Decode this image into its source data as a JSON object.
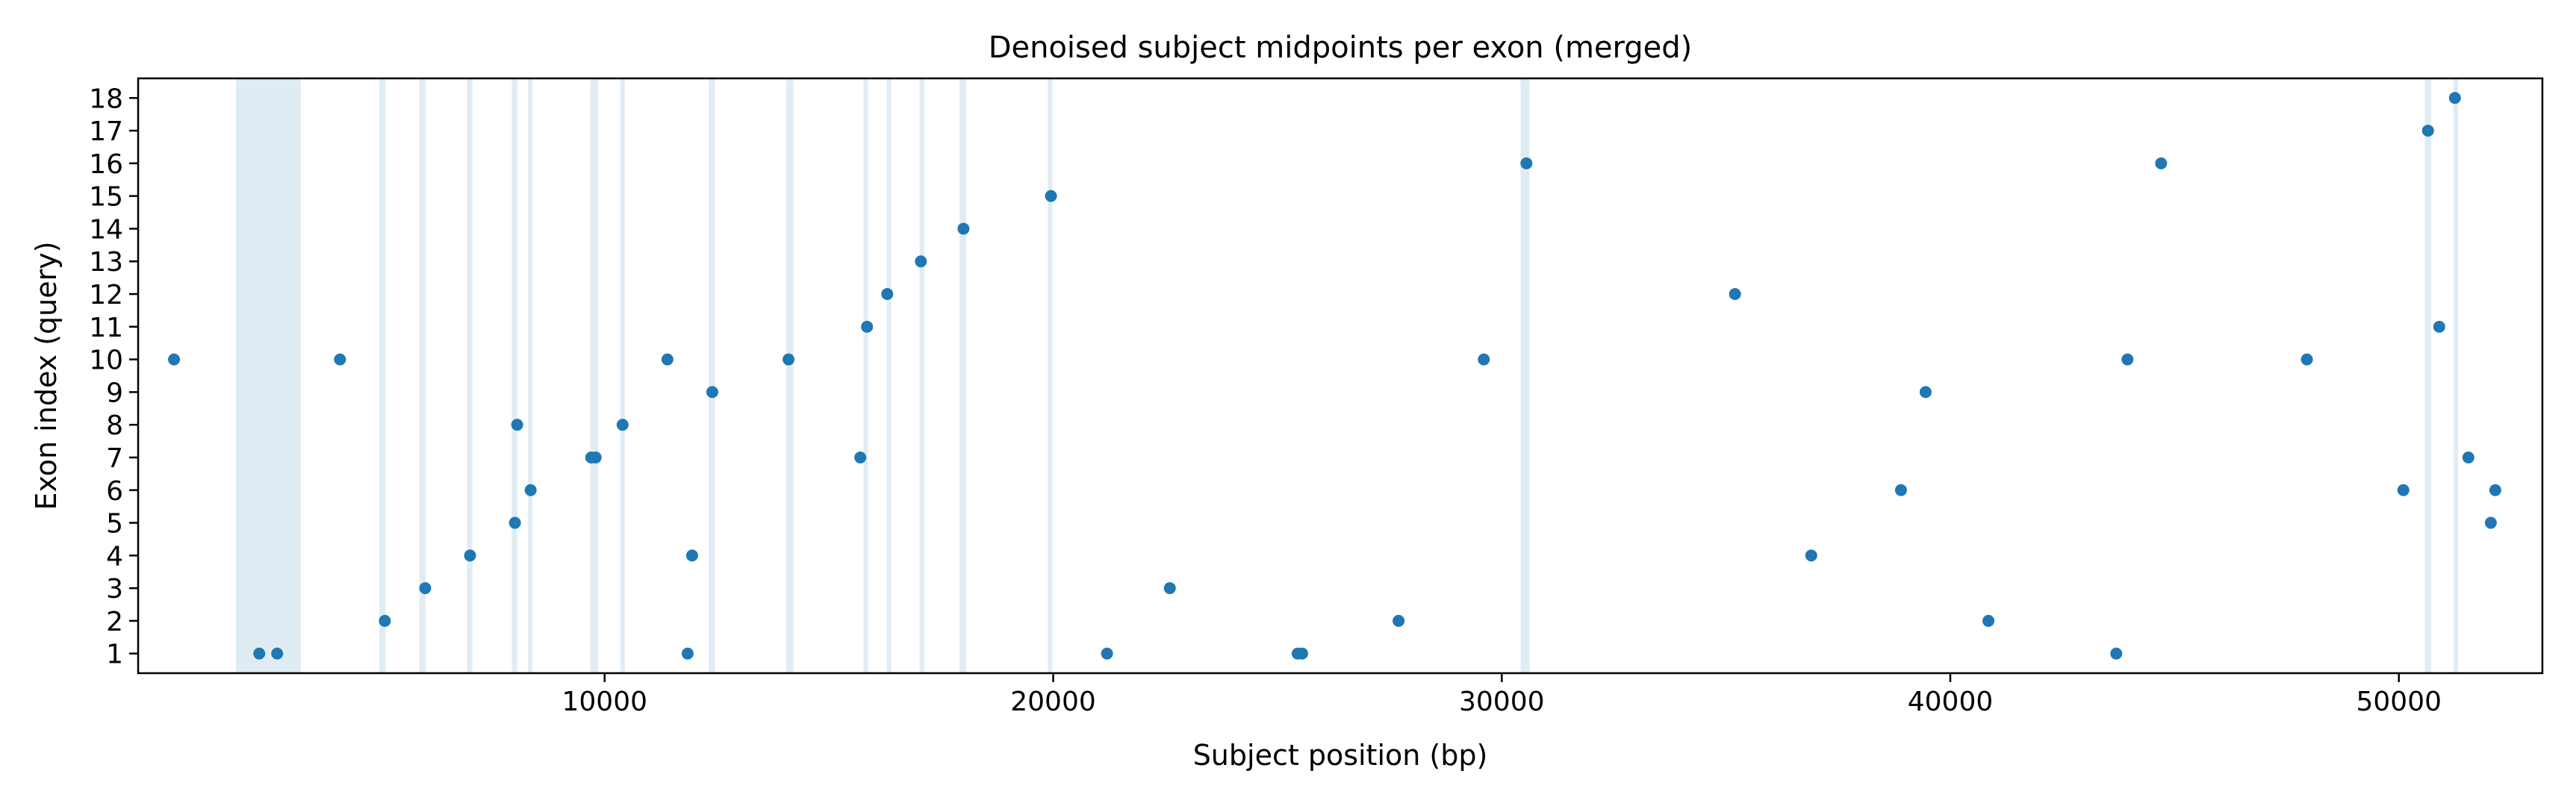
{
  "chart_data": {
    "type": "scatter",
    "title": "Denoised subject midpoints per exon (merged)",
    "xlabel": "Subject position (bp)",
    "ylabel": "Exon index (query)",
    "xlim": [
      -400,
      53200
    ],
    "ylim": [
      0.4,
      18.6
    ],
    "xticks": [
      10000,
      20000,
      30000,
      40000,
      50000
    ],
    "yticks": [
      1,
      2,
      3,
      4,
      5,
      6,
      7,
      8,
      9,
      10,
      11,
      12,
      13,
      14,
      15,
      16,
      17,
      18
    ],
    "grid": false,
    "legend": "none",
    "point_color": "#1f77b4",
    "band_color": "#d6e6f0",
    "shaded_bands": [
      [
        1780,
        3230
      ],
      [
        4980,
        5120
      ],
      [
        5870,
        6010
      ],
      [
        6930,
        7050
      ],
      [
        7930,
        8050
      ],
      [
        8290,
        8390
      ],
      [
        9680,
        9860
      ],
      [
        10350,
        10450
      ],
      [
        12320,
        12460
      ],
      [
        14050,
        14210
      ],
      [
        15770,
        15870
      ],
      [
        16290,
        16390
      ],
      [
        17020,
        17130
      ],
      [
        17910,
        18060
      ],
      [
        19880,
        19980
      ],
      [
        30420,
        30620
      ],
      [
        50580,
        50720
      ],
      [
        51220,
        51320
      ]
    ],
    "points": [
      {
        "x": 400,
        "y": 10
      },
      {
        "x": 2300,
        "y": 1
      },
      {
        "x": 2700,
        "y": 1
      },
      {
        "x": 4100,
        "y": 10
      },
      {
        "x": 5100,
        "y": 2
      },
      {
        "x": 6000,
        "y": 3
      },
      {
        "x": 7000,
        "y": 4
      },
      {
        "x": 8000,
        "y": 5
      },
      {
        "x": 8050,
        "y": 8
      },
      {
        "x": 8350,
        "y": 6
      },
      {
        "x": 9700,
        "y": 7
      },
      {
        "x": 9800,
        "y": 7
      },
      {
        "x": 10400,
        "y": 8
      },
      {
        "x": 11400,
        "y": 10
      },
      {
        "x": 11850,
        "y": 1
      },
      {
        "x": 11950,
        "y": 4
      },
      {
        "x": 12400,
        "y": 9
      },
      {
        "x": 14100,
        "y": 10
      },
      {
        "x": 15700,
        "y": 7
      },
      {
        "x": 15850,
        "y": 11
      },
      {
        "x": 16300,
        "y": 12
      },
      {
        "x": 17050,
        "y": 13
      },
      {
        "x": 18000,
        "y": 14
      },
      {
        "x": 19950,
        "y": 15
      },
      {
        "x": 21200,
        "y": 1
      },
      {
        "x": 22600,
        "y": 3
      },
      {
        "x": 25450,
        "y": 1
      },
      {
        "x": 25550,
        "y": 1
      },
      {
        "x": 27700,
        "y": 2
      },
      {
        "x": 29600,
        "y": 10
      },
      {
        "x": 30550,
        "y": 16
      },
      {
        "x": 35200,
        "y": 12
      },
      {
        "x": 36900,
        "y": 4
      },
      {
        "x": 38900,
        "y": 6
      },
      {
        "x": 39450,
        "y": 9
      },
      {
        "x": 40850,
        "y": 2
      },
      {
        "x": 43700,
        "y": 1
      },
      {
        "x": 43950,
        "y": 10
      },
      {
        "x": 44700,
        "y": 16
      },
      {
        "x": 47950,
        "y": 10
      },
      {
        "x": 50100,
        "y": 6
      },
      {
        "x": 50650,
        "y": 17
      },
      {
        "x": 50900,
        "y": 11
      },
      {
        "x": 51250,
        "y": 18
      },
      {
        "x": 51550,
        "y": 7
      },
      {
        "x": 52050,
        "y": 5
      },
      {
        "x": 52150,
        "y": 6
      }
    ]
  }
}
